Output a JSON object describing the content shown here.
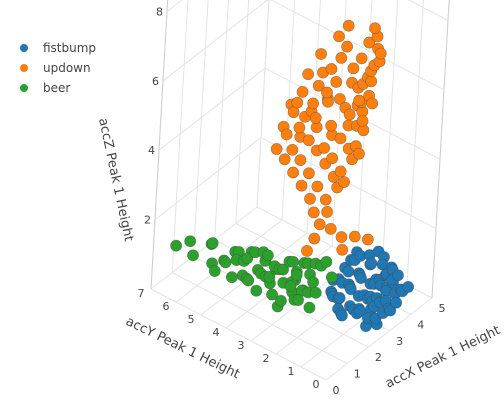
{
  "chart_data": {
    "type": "scatter3d",
    "axes": {
      "x": {
        "label": "accX Peak 1 Height",
        "range": [
          0,
          5
        ],
        "ticks": [
          "0",
          "1",
          "2",
          "3",
          "4",
          "5"
        ]
      },
      "y": {
        "label": "accY Peak 1 Height",
        "range": [
          0,
          7
        ],
        "ticks": [
          "0",
          "1",
          "2",
          "3",
          "4",
          "5",
          "6",
          "7"
        ]
      },
      "z": {
        "label": "accZ Peak 1 Height",
        "range": [
          0,
          9
        ],
        "ticks": [
          "2",
          "4",
          "6",
          "8"
        ]
      }
    },
    "grid": true,
    "legend": {
      "placement": "top-left"
    },
    "series": [
      {
        "name": "fistbump",
        "color": "#1f77b4",
        "points": [
          [
            2.2,
            0.3,
            0.4
          ],
          [
            2.4,
            0.4,
            0.5
          ],
          [
            2.6,
            0.2,
            0.3
          ],
          [
            2.8,
            0.5,
            0.6
          ],
          [
            3.0,
            0.3,
            0.4
          ],
          [
            3.2,
            0.6,
            0.5
          ],
          [
            3.4,
            0.4,
            0.3
          ],
          [
            3.6,
            0.7,
            0.6
          ],
          [
            3.8,
            0.5,
            0.5
          ],
          [
            4.0,
            0.8,
            0.7
          ],
          [
            4.2,
            0.6,
            0.4
          ],
          [
            4.4,
            0.9,
            0.6
          ],
          [
            2.5,
            0.8,
            0.5
          ],
          [
            2.7,
            1.0,
            0.4
          ],
          [
            2.9,
            1.2,
            0.6
          ],
          [
            3.1,
            1.0,
            0.5
          ],
          [
            3.3,
            1.3,
            0.4
          ],
          [
            3.5,
            1.1,
            0.7
          ],
          [
            3.7,
            1.4,
            0.5
          ],
          [
            3.9,
            1.2,
            0.6
          ],
          [
            4.1,
            1.5,
            0.4
          ],
          [
            4.3,
            1.3,
            0.5
          ],
          [
            4.5,
            1.6,
            0.6
          ],
          [
            2.3,
            1.5,
            0.4
          ],
          [
            2.6,
            1.7,
            0.5
          ],
          [
            2.8,
            1.9,
            0.3
          ],
          [
            3.0,
            1.6,
            0.6
          ],
          [
            3.2,
            1.8,
            0.5
          ],
          [
            3.4,
            2.0,
            0.4
          ],
          [
            3.6,
            1.7,
            0.6
          ],
          [
            3.8,
            1.9,
            0.5
          ],
          [
            4.0,
            2.1,
            0.4
          ],
          [
            4.2,
            1.8,
            0.7
          ],
          [
            4.4,
            2.0,
            0.5
          ],
          [
            4.6,
            2.2,
            0.6
          ],
          [
            2.1,
            0.6,
            0.7
          ],
          [
            2.3,
            0.9,
            0.6
          ],
          [
            2.5,
            1.2,
            0.5
          ],
          [
            2.7,
            0.5,
            0.8
          ],
          [
            2.9,
            0.7,
            0.4
          ],
          [
            3.1,
            0.9,
            0.6
          ],
          [
            3.3,
            0.8,
            0.5
          ],
          [
            3.5,
            0.6,
            0.4
          ],
          [
            3.7,
            1.0,
            0.6
          ],
          [
            3.9,
            0.9,
            0.5
          ],
          [
            4.1,
            1.1,
            0.7
          ],
          [
            4.3,
            1.0,
            0.4
          ],
          [
            4.5,
            1.2,
            0.6
          ],
          [
            4.7,
            1.4,
            0.5
          ],
          [
            4.8,
            1.8,
            0.6
          ],
          [
            2.0,
            1.1,
            0.5
          ],
          [
            2.2,
            1.3,
            0.4
          ],
          [
            2.4,
            1.8,
            0.6
          ],
          [
            2.6,
            2.0,
            0.5
          ],
          [
            2.8,
            2.2,
            0.4
          ],
          [
            3.0,
            2.3,
            0.6
          ],
          [
            3.2,
            2.1,
            0.5
          ],
          [
            3.4,
            2.4,
            0.4
          ],
          [
            3.6,
            2.2,
            0.6
          ],
          [
            3.8,
            2.5,
            0.5
          ],
          [
            4.0,
            2.3,
            0.7
          ],
          [
            4.2,
            2.6,
            0.5
          ],
          [
            4.4,
            2.4,
            0.6
          ],
          [
            4.6,
            2.7,
            0.5
          ],
          [
            3.5,
            0.2,
            0.5
          ],
          [
            3.9,
            0.3,
            0.6
          ],
          [
            4.3,
            0.4,
            0.5
          ],
          [
            2.4,
            0.1,
            0.6
          ],
          [
            3.1,
            0.1,
            0.5
          ],
          [
            4.9,
            2.1,
            0.6
          ]
        ]
      },
      {
        "name": "updown",
        "color": "#ff7f0e",
        "points": [
          [
            1.7,
            1.6,
            8.5
          ],
          [
            2.4,
            1.8,
            8.4
          ],
          [
            2.0,
            1.5,
            8.1
          ],
          [
            1.5,
            2.1,
            7.9
          ],
          [
            2.7,
            1.2,
            8.0
          ],
          [
            3.2,
            1.4,
            8.1
          ],
          [
            2.9,
            1.0,
            7.8
          ],
          [
            3.6,
            1.6,
            7.6
          ],
          [
            1.3,
            2.4,
            7.3
          ],
          [
            1.8,
            1.9,
            7.4
          ],
          [
            2.5,
            1.6,
            7.2
          ],
          [
            3.0,
            1.3,
            7.0
          ],
          [
            1.6,
            2.2,
            6.9
          ],
          [
            2.2,
            2.0,
            6.8
          ],
          [
            2.6,
            1.7,
            6.7
          ],
          [
            3.4,
            1.5,
            6.9
          ],
          [
            1.1,
            2.6,
            6.5
          ],
          [
            1.5,
            2.3,
            6.4
          ],
          [
            1.9,
            2.1,
            6.6
          ],
          [
            2.3,
            1.9,
            6.3
          ],
          [
            2.8,
            1.6,
            6.5
          ],
          [
            3.1,
            1.4,
            6.2
          ],
          [
            3.5,
            1.8,
            6.4
          ],
          [
            1.2,
            2.8,
            6.1
          ],
          [
            1.7,
            2.5,
            6.0
          ],
          [
            2.1,
            2.2,
            6.2
          ],
          [
            2.6,
            1.9,
            5.9
          ],
          [
            3.0,
            1.7,
            6.0
          ],
          [
            3.4,
            1.5,
            5.8
          ],
          [
            3.8,
            1.9,
            6.1
          ],
          [
            1.0,
            3.0,
            5.7
          ],
          [
            1.4,
            2.7,
            5.6
          ],
          [
            1.8,
            2.4,
            5.8
          ],
          [
            2.2,
            2.1,
            5.5
          ],
          [
            2.7,
            1.8,
            5.7
          ],
          [
            3.1,
            1.6,
            5.4
          ],
          [
            3.5,
            2.0,
            5.6
          ],
          [
            1.3,
            3.1,
            5.3
          ],
          [
            1.6,
            2.8,
            5.2
          ],
          [
            2.0,
            2.5,
            5.4
          ],
          [
            2.4,
            2.2,
            5.1
          ],
          [
            2.8,
            1.9,
            5.3
          ],
          [
            3.3,
            1.7,
            5.0
          ],
          [
            3.7,
            2.1,
            5.2
          ],
          [
            1.1,
            3.3,
            4.9
          ],
          [
            1.5,
            3.0,
            4.8
          ],
          [
            1.9,
            2.7,
            5.0
          ],
          [
            2.3,
            2.4,
            4.7
          ],
          [
            2.7,
            2.1,
            4.9
          ],
          [
            3.1,
            1.8,
            4.6
          ],
          [
            3.6,
            2.2,
            4.8
          ],
          [
            1.4,
            3.2,
            4.5
          ],
          [
            1.8,
            2.9,
            4.4
          ],
          [
            2.2,
            2.6,
            4.6
          ],
          [
            2.6,
            2.3,
            4.3
          ],
          [
            3.0,
            2.0,
            4.5
          ],
          [
            3.4,
            1.9,
            4.2
          ],
          [
            1.6,
            3.0,
            4.1
          ],
          [
            2.0,
            2.7,
            4.0
          ],
          [
            2.4,
            2.4,
            4.2
          ],
          [
            2.8,
            2.1,
            3.9
          ],
          [
            3.2,
            2.0,
            4.1
          ],
          [
            1.8,
            2.8,
            3.7
          ],
          [
            2.2,
            2.5,
            3.6
          ],
          [
            2.6,
            2.2,
            3.8
          ],
          [
            3.0,
            2.1,
            3.5
          ],
          [
            2.0,
            2.6,
            3.3
          ],
          [
            2.4,
            2.3,
            3.2
          ],
          [
            2.8,
            2.2,
            3.4
          ],
          [
            2.1,
            2.5,
            2.9
          ],
          [
            2.5,
            2.3,
            2.8
          ],
          [
            2.3,
            2.4,
            2.5
          ],
          [
            2.6,
            2.2,
            2.3
          ],
          [
            2.2,
            2.5,
            2.1
          ],
          [
            2.9,
            2.0,
            2.0
          ],
          [
            3.3,
            1.8,
            1.9
          ],
          [
            3.7,
            1.6,
            1.7
          ],
          [
            2.0,
            2.6,
            1.8
          ],
          [
            3.1,
            2.1,
            1.5
          ],
          [
            1.9,
            2.9,
            5.6
          ],
          [
            2.9,
            1.5,
            6.6
          ],
          [
            2.5,
            1.3,
            7.6
          ],
          [
            3.3,
            1.2,
            7.4
          ],
          [
            1.9,
            2.3,
            7.1
          ],
          [
            2.6,
            2.6,
            5.9
          ],
          [
            1.7,
            3.3,
            5.9
          ],
          [
            3.9,
            1.7,
            6.7
          ],
          [
            3.7,
            2.3,
            5.3
          ],
          [
            1.2,
            2.5,
            6.8
          ],
          [
            2.0,
            1.7,
            7.7
          ]
        ]
      },
      {
        "name": "beer",
        "color": "#2ca02c",
        "points": [
          [
            0.3,
            1.5,
            1.6
          ],
          [
            0.5,
            1.8,
            1.4
          ],
          [
            0.7,
            2.1,
            1.7
          ],
          [
            0.9,
            1.6,
            1.5
          ],
          [
            1.1,
            2.0,
            1.3
          ],
          [
            1.3,
            2.4,
            1.6
          ],
          [
            1.5,
            1.9,
            1.4
          ],
          [
            1.7,
            2.3,
            1.7
          ],
          [
            1.9,
            2.6,
            1.5
          ],
          [
            0.4,
            2.6,
            1.3
          ],
          [
            0.6,
            2.9,
            1.6
          ],
          [
            0.8,
            3.2,
            1.4
          ],
          [
            1.0,
            2.7,
            1.7
          ],
          [
            1.2,
            3.0,
            1.5
          ],
          [
            1.4,
            3.3,
            1.3
          ],
          [
            1.6,
            2.8,
            1.6
          ],
          [
            1.8,
            3.1,
            1.4
          ],
          [
            0.2,
            3.4,
            1.5
          ],
          [
            0.5,
            3.7,
            1.3
          ],
          [
            0.7,
            4.0,
            1.6
          ],
          [
            0.9,
            3.6,
            1.4
          ],
          [
            1.1,
            3.9,
            1.7
          ],
          [
            1.3,
            4.2,
            1.5
          ],
          [
            1.5,
            3.8,
            1.3
          ],
          [
            0.3,
            4.4,
            1.6
          ],
          [
            0.6,
            4.7,
            1.4
          ],
          [
            0.8,
            4.3,
            1.7
          ],
          [
            1.0,
            4.6,
            1.5
          ],
          [
            0.4,
            5.0,
            1.3
          ],
          [
            0.7,
            5.3,
            1.6
          ],
          [
            0.2,
            2.2,
            1.2
          ],
          [
            0.4,
            1.9,
            1.8
          ],
          [
            0.6,
            2.4,
            1.1
          ],
          [
            0.8,
            2.0,
            1.9
          ],
          [
            1.0,
            2.3,
            1.2
          ],
          [
            1.2,
            1.8,
            1.8
          ],
          [
            1.4,
            2.2,
            1.1
          ],
          [
            1.6,
            1.7,
            1.9
          ],
          [
            0.3,
            3.0,
            1.8
          ],
          [
            0.5,
            3.3,
            1.1
          ],
          [
            0.7,
            2.8,
            1.9
          ],
          [
            0.9,
            3.1,
            1.2
          ],
          [
            1.1,
            3.4,
            1.8
          ],
          [
            1.3,
            2.9,
            1.1
          ],
          [
            0.2,
            3.9,
            1.9
          ],
          [
            0.4,
            4.2,
            1.2
          ],
          [
            0.6,
            3.8,
            1.8
          ],
          [
            0.8,
            4.1,
            1.1
          ],
          [
            1.0,
            3.5,
            1.9
          ],
          [
            0.3,
            4.8,
            1.2
          ],
          [
            0.5,
            5.1,
            1.8
          ],
          [
            0.2,
            5.6,
            1.4
          ],
          [
            0.4,
            5.9,
            1.6
          ],
          [
            0.1,
            6.2,
            1.5
          ],
          [
            1.9,
            1.5,
            1.5
          ],
          [
            2.1,
            1.9,
            1.7
          ],
          [
            0.9,
            1.3,
            1.6
          ],
          [
            0.5,
            1.2,
            1.4
          ],
          [
            1.5,
            2.6,
            1.2
          ],
          [
            1.7,
            2.0,
            1.8
          ]
        ]
      }
    ]
  }
}
